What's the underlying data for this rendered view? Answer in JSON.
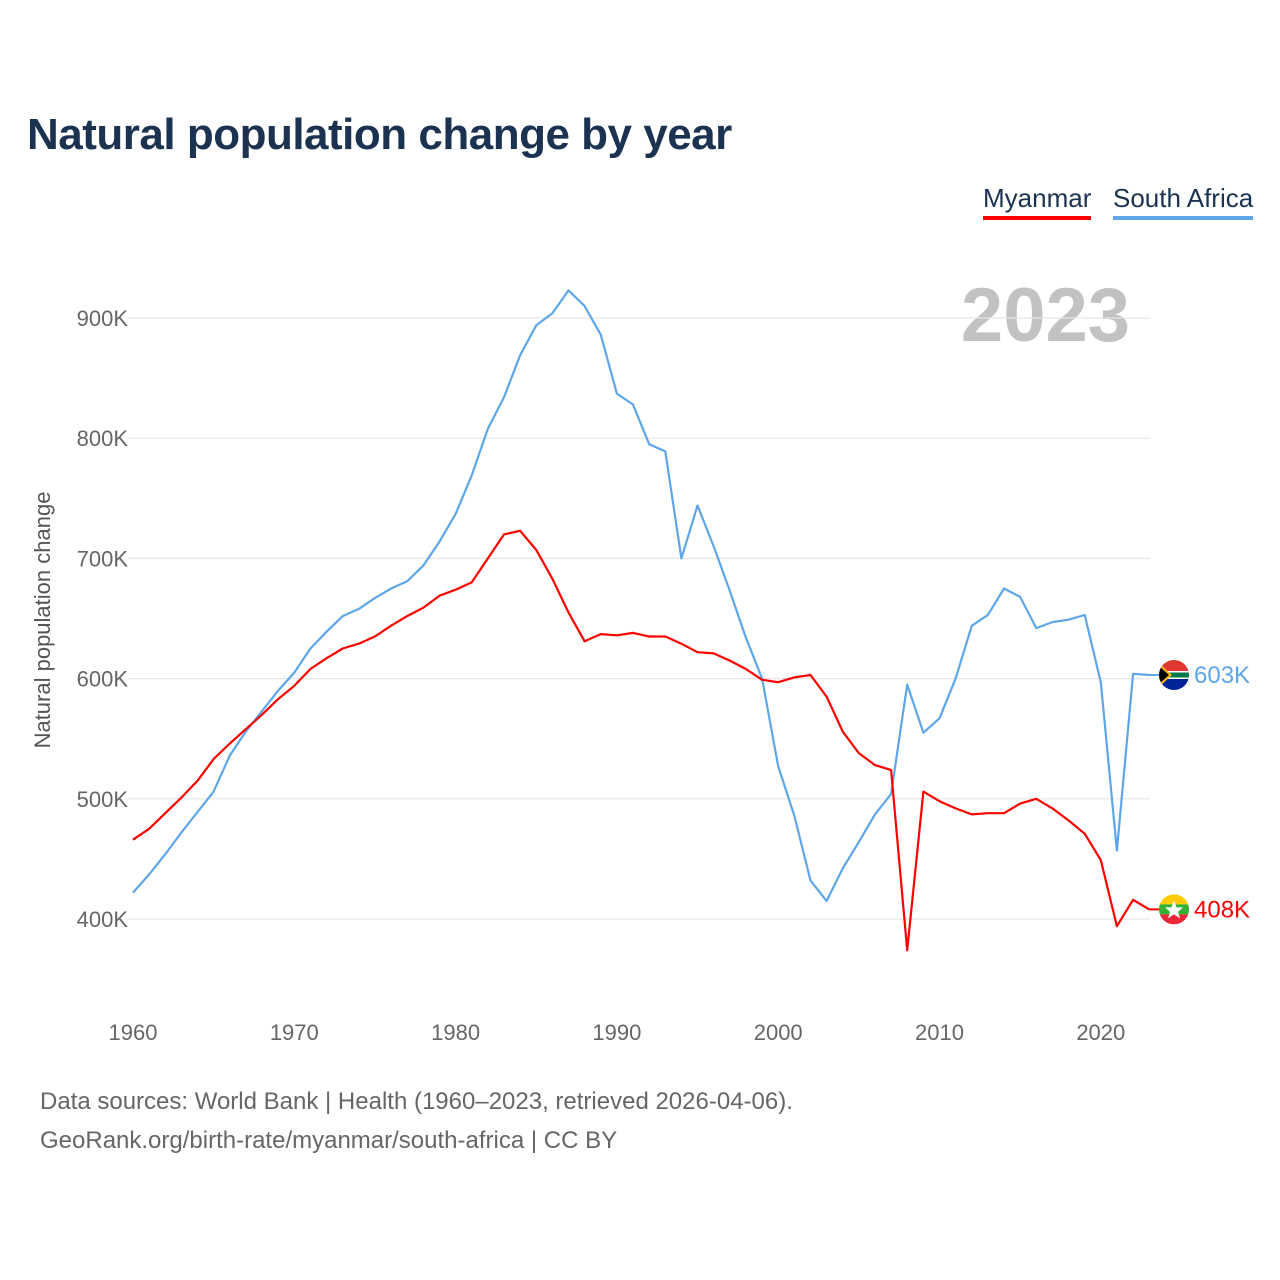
{
  "chart_data": {
    "type": "line",
    "title": "Natural population change by year",
    "xlabel": "",
    "ylabel": "Natural population change",
    "xlim": [
      1960,
      2023
    ],
    "ylim": [
      330,
      950
    ],
    "x_ticks": [
      1960,
      1970,
      1980,
      1990,
      2000,
      2010,
      2020
    ],
    "x_tick_labels": [
      "1960",
      "1970",
      "1980",
      "1990",
      "2000",
      "2010",
      "2020"
    ],
    "y_ticks": [
      400,
      500,
      600,
      700,
      800,
      900
    ],
    "y_tick_labels": [
      "400K",
      "500K",
      "600K",
      "700K",
      "800K",
      "900K"
    ],
    "grid": true,
    "legend_position": "top-right",
    "current_year": "2023",
    "x": [
      1960,
      1961,
      1962,
      1963,
      1964,
      1965,
      1966,
      1967,
      1968,
      1969,
      1970,
      1971,
      1972,
      1973,
      1974,
      1975,
      1976,
      1977,
      1978,
      1979,
      1980,
      1981,
      1982,
      1983,
      1984,
      1985,
      1986,
      1987,
      1988,
      1989,
      1990,
      1991,
      1992,
      1993,
      1994,
      1995,
      1996,
      1997,
      1998,
      1999,
      2000,
      2001,
      2002,
      2003,
      2004,
      2005,
      2006,
      2007,
      2008,
      2009,
      2010,
      2011,
      2012,
      2013,
      2014,
      2015,
      2016,
      2017,
      2018,
      2019,
      2020,
      2021,
      2022,
      2023
    ],
    "series": [
      {
        "name": "Myanmar",
        "color": "#ff0000",
        "end_label": "408K",
        "flag": "myanmar-flag",
        "values": [
          466,
          475,
          488,
          501,
          515,
          533,
          546,
          558,
          570,
          583,
          594,
          608,
          617,
          625,
          629,
          635,
          644,
          652,
          659,
          669,
          674,
          680,
          700,
          720,
          723,
          707,
          683,
          655,
          631,
          637,
          636,
          638,
          635,
          635,
          629,
          622,
          621,
          615,
          608,
          599,
          597,
          601,
          603,
          585,
          556,
          538,
          528,
          524,
          374,
          506,
          498,
          492,
          487,
          488,
          488,
          496,
          500,
          492,
          482,
          471,
          449,
          394,
          416,
          408
        ]
      },
      {
        "name": "South Africa",
        "color": "#5ea6e8",
        "end_label": "603K",
        "flag": "south-africa-flag",
        "values": [
          422,
          437,
          454,
          472,
          489,
          506,
          536,
          556,
          573,
          590,
          605,
          625,
          639,
          652,
          658,
          667,
          675,
          681,
          694,
          714,
          737,
          769,
          808,
          834,
          869,
          894,
          904,
          923,
          910,
          886,
          837,
          828,
          795,
          789,
          700,
          744,
          710,
          673,
          634,
          600,
          527,
          486,
          432,
          415,
          442,
          464,
          487,
          504,
          595,
          555,
          567,
          600,
          644,
          653,
          675,
          668,
          642,
          647,
          649,
          653,
          597,
          457,
          604,
          603
        ]
      }
    ]
  },
  "footer": {
    "sources": "Data sources: World Bank | Health (1960–2023, retrieved 2026-04-06).",
    "link": "GeoRank.org/birth-rate/myanmar/south-africa | CC BY"
  }
}
